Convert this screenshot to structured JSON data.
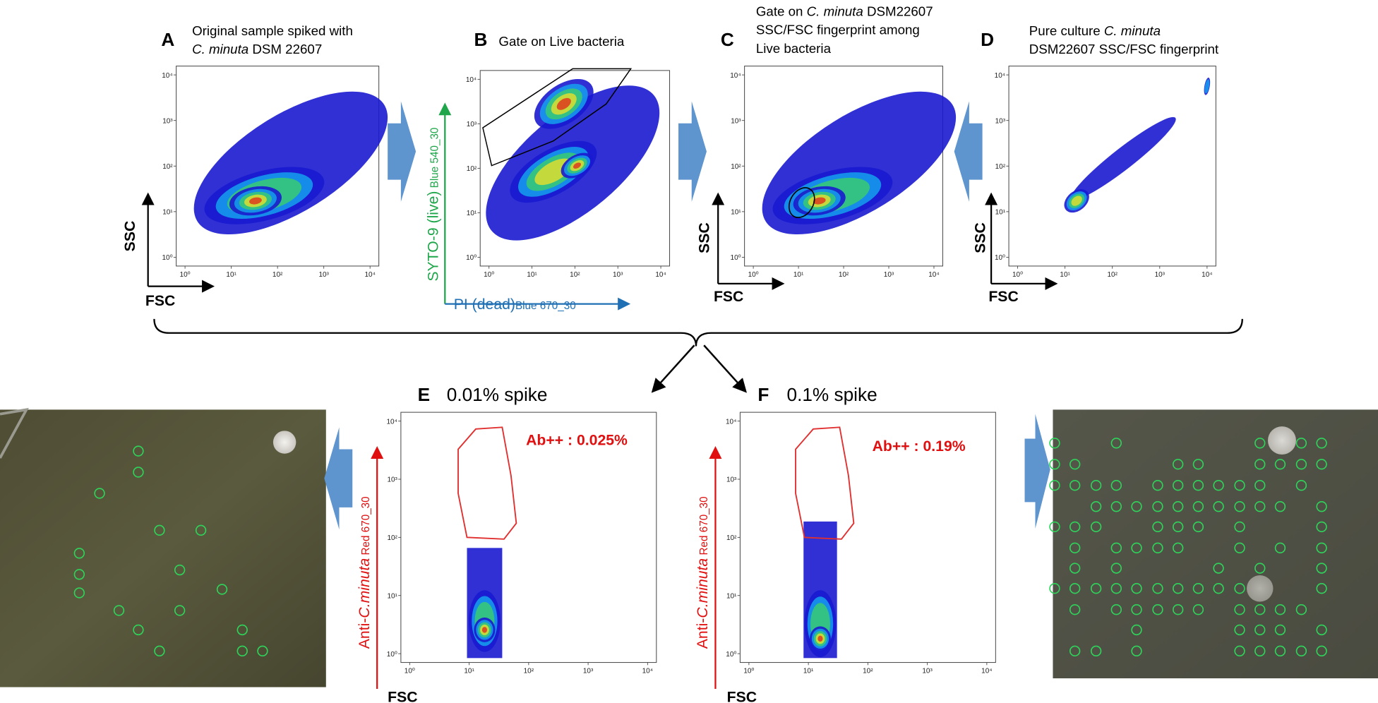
{
  "panels": [
    {
      "letter": "A",
      "title": [
        [
          {
            "text": "Original sample spiked with"
          }
        ],
        [
          {
            "text": "C. minuta",
            "italic": true
          },
          {
            "text": " DSM 22607"
          }
        ]
      ],
      "x_label": [
        {
          "text": "FSC"
        }
      ],
      "y_label": [
        {
          "text": "SSC"
        }
      ],
      "label_color": "#000000",
      "log_scale": true,
      "xticks": [
        {
          "value": 1,
          "label": "10⁰"
        },
        {
          "value": 10,
          "label": "10¹"
        },
        {
          "value": 100,
          "label": "10²"
        },
        {
          "value": 1000,
          "label": "10³"
        },
        {
          "value": 10000,
          "label": "10⁴"
        }
      ],
      "yticks": [
        {
          "value": 1,
          "label": "10⁰"
        },
        {
          "value": 10,
          "label": "10¹"
        },
        {
          "value": 100,
          "label": "10²"
        },
        {
          "value": 1000,
          "label": "10³"
        },
        {
          "value": 10000,
          "label": "10⁴"
        }
      ]
    },
    {
      "letter": "B",
      "title": [
        [
          {
            "text": "Gate on Live bacteria"
          }
        ]
      ],
      "x_label": [
        {
          "text": "PI (dead)"
        },
        {
          "text": "Blue 670_30",
          "small": true
        }
      ],
      "x_label_color": "#1f6fb4",
      "y_label": [
        {
          "text": "SYTO-9 (live)"
        },
        {
          "text": " Blue 540_30",
          "small": true
        }
      ],
      "label_color": "#1fa64a",
      "log_scale": true,
      "xticks": [
        {
          "value": 1,
          "label": "10⁰"
        },
        {
          "value": 10,
          "label": "10¹"
        },
        {
          "value": 100,
          "label": "10²"
        },
        {
          "value": 1000,
          "label": "10³"
        },
        {
          "value": 10000,
          "label": "10⁴"
        }
      ],
      "yticks": [
        {
          "value": 1,
          "label": "10⁰"
        },
        {
          "value": 10,
          "label": "10¹"
        },
        {
          "value": 100,
          "label": "10²"
        },
        {
          "value": 1000,
          "label": "10³"
        },
        {
          "value": 10000,
          "label": "10⁴"
        }
      ]
    },
    {
      "letter": "C",
      "title": [
        [
          {
            "text": "Gate on "
          },
          {
            "text": "C. minuta",
            "italic": true
          },
          {
            "text": " DSM22607"
          }
        ],
        [
          {
            "text": "SSC/FSC fingerprint among"
          }
        ],
        [
          {
            "text": "Live bacteria"
          }
        ]
      ],
      "x_label": [
        {
          "text": "FSC"
        }
      ],
      "y_label": [
        {
          "text": "SSC"
        }
      ],
      "label_color": "#000000",
      "log_scale": true,
      "xticks": [
        {
          "value": 1,
          "label": "10⁰"
        },
        {
          "value": 10,
          "label": "10¹"
        },
        {
          "value": 100,
          "label": "10²"
        },
        {
          "value": 1000,
          "label": "10³"
        },
        {
          "value": 10000,
          "label": "10⁴"
        }
      ],
      "yticks": [
        {
          "value": 1,
          "label": "10⁰"
        },
        {
          "value": 10,
          "label": "10¹"
        },
        {
          "value": 100,
          "label": "10²"
        },
        {
          "value": 1000,
          "label": "10³"
        },
        {
          "value": 10000,
          "label": "10⁴"
        }
      ]
    },
    {
      "letter": "D",
      "title": [
        [
          {
            "text": "Pure culture "
          },
          {
            "text": "C. minuta",
            "italic": true
          }
        ],
        [
          {
            "text": "DSM22607 SSC/FSC fingerprint"
          }
        ]
      ],
      "x_label": [
        {
          "text": "FSC"
        }
      ],
      "y_label": [
        {
          "text": "SSC"
        }
      ],
      "label_color": "#000000",
      "log_scale": true,
      "xticks": [
        {
          "value": 1,
          "label": "10⁰"
        },
        {
          "value": 10,
          "label": "10¹"
        },
        {
          "value": 100,
          "label": "10²"
        },
        {
          "value": 1000,
          "label": "10³"
        },
        {
          "value": 10000,
          "label": "10⁴"
        }
      ],
      "yticks": [
        {
          "value": 1,
          "label": "10⁰"
        },
        {
          "value": 10,
          "label": "10¹"
        },
        {
          "value": 100,
          "label": "10²"
        },
        {
          "value": 1000,
          "label": "10³"
        },
        {
          "value": 10000,
          "label": "10⁴"
        }
      ]
    },
    {
      "letter": "E",
      "title": [
        [
          {
            "text": "0.01% spike"
          }
        ]
      ],
      "gate_label": "Ab++ : 0.025%",
      "x_label": [
        {
          "text": "FSC"
        }
      ],
      "x_label_color": "#000000",
      "y_label": [
        {
          "text": "Anti-"
        },
        {
          "text": "C.minuta",
          "italic": true
        },
        {
          "text": " Red 670_30",
          "small": true
        }
      ],
      "label_color": "#e01010",
      "log_scale": true,
      "xticks": [
        {
          "value": 1,
          "label": "10⁰"
        },
        {
          "value": 10,
          "label": "10¹"
        },
        {
          "value": 100,
          "label": "10²"
        },
        {
          "value": 1000,
          "label": "10³"
        },
        {
          "value": 10000,
          "label": "10⁴"
        }
      ],
      "yticks": [
        {
          "value": 1,
          "label": "10⁰"
        },
        {
          "value": 10,
          "label": "10¹"
        },
        {
          "value": 100,
          "label": "10²"
        },
        {
          "value": 1000,
          "label": "10³"
        },
        {
          "value": 10000,
          "label": "10⁴"
        }
      ]
    },
    {
      "letter": "F",
      "title": [
        [
          {
            "text": "0.1% spike"
          }
        ]
      ],
      "gate_label": "Ab++ : 0.19%",
      "x_label": [
        {
          "text": "FSC"
        }
      ],
      "x_label_color": "#000000",
      "y_label": [
        {
          "text": "Anti-"
        },
        {
          "text": "C.minuta",
          "italic": true
        },
        {
          "text": " Red 670_30",
          "small": true
        }
      ],
      "label_color": "#e01010",
      "log_scale": true,
      "xticks": [
        {
          "value": 1,
          "label": "10⁰"
        },
        {
          "value": 10,
          "label": "10¹"
        },
        {
          "value": 100,
          "label": "10²"
        },
        {
          "value": 1000,
          "label": "10³"
        },
        {
          "value": 10000,
          "label": "10⁴"
        }
      ],
      "yticks": [
        {
          "value": 1,
          "label": "10⁰"
        },
        {
          "value": 10,
          "label": "10¹"
        },
        {
          "value": 100,
          "label": "10²"
        },
        {
          "value": 1000,
          "label": "10³"
        },
        {
          "value": 10000,
          "label": "10⁴"
        }
      ]
    }
  ]
}
